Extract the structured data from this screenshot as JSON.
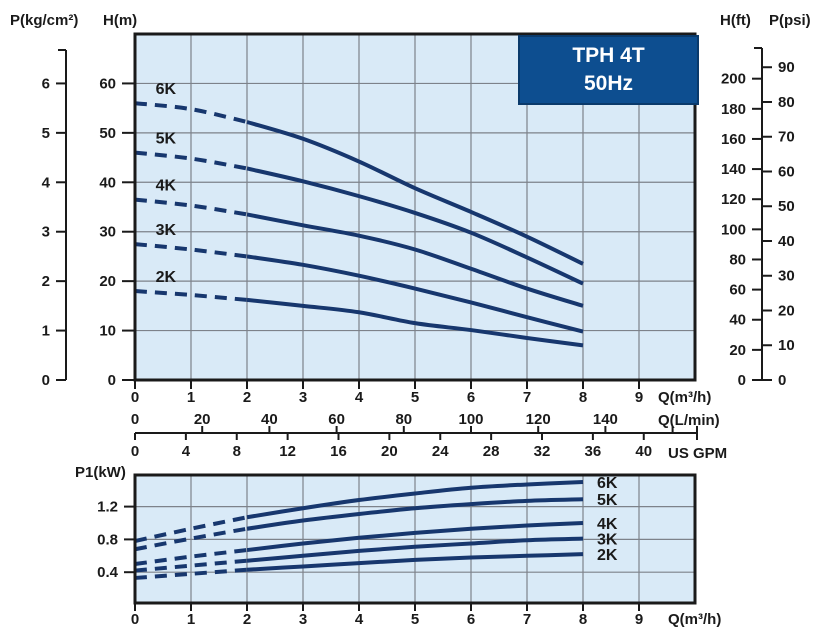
{
  "title_box": {
    "model": "TPH 4T",
    "frequency": "50Hz"
  },
  "header": {
    "left_pressure_axis_label": "P(kg/cm²)",
    "left_head_axis_label": "H(m)",
    "right_head_axis_label": "H(ft)",
    "right_pressure_axis_label": "P(psi)"
  },
  "left_axes": {
    "p_kgcm2_ticks": [
      0,
      1,
      2,
      3,
      4,
      5,
      6
    ],
    "h_m_ticks": [
      0,
      10,
      20,
      30,
      40,
      50,
      60
    ]
  },
  "right_axes": {
    "h_ft_ticks": [
      0,
      20,
      40,
      60,
      80,
      100,
      120,
      140,
      160,
      180,
      200
    ],
    "p_psi_ticks": [
      0,
      10,
      20,
      30,
      40,
      50,
      60,
      70,
      80,
      90
    ]
  },
  "x_axis_rows": {
    "m3h": {
      "unit": "Q(m³/h)",
      "ticks": [
        0,
        1,
        2,
        3,
        4,
        5,
        6,
        7,
        8,
        9
      ]
    },
    "lmin": {
      "unit": "Q(L/min)",
      "ticks": [
        0,
        20,
        40,
        60,
        80,
        100,
        120,
        140
      ]
    },
    "usgpm": {
      "unit": "US GPM",
      "ticks": [
        0,
        4,
        8,
        12,
        16,
        20,
        24,
        28,
        32,
        36,
        40
      ]
    }
  },
  "power_axis": {
    "label": "P1(kW)",
    "ticks": [
      0.4,
      0.8,
      1.2
    ]
  },
  "bottom_x_axis": {
    "unit": "Q(m³/h)",
    "ticks": [
      0,
      1,
      2,
      3,
      4,
      5,
      6,
      7,
      8,
      9
    ]
  },
  "colors": {
    "plot_background": "#d9eaf7",
    "curve": "#17376e",
    "grid": "#7d828a",
    "frame": "#1a1a1a",
    "title_box_fill": "#0d4e90",
    "title_box_border": "#0a3a6b",
    "title_box_text": "#ffffff",
    "text": "#1a1a1a"
  },
  "chart_data": [
    {
      "id": "head-curves",
      "type": "line",
      "title": "TPH 4T 50Hz",
      "xlabel": "Q(m³/h)",
      "ylabel": "H(m)",
      "x": [
        0,
        1,
        2,
        3,
        4,
        5,
        6,
        7,
        8
      ],
      "series": [
        {
          "name": "6K",
          "values": [
            56,
            54.8,
            52.2,
            48.8,
            44.2,
            38.8,
            34,
            29,
            23.5
          ]
        },
        {
          "name": "5K",
          "values": [
            46,
            44.8,
            42.8,
            40.2,
            37.2,
            33.8,
            29.8,
            24.8,
            19.5
          ]
        },
        {
          "name": "4K",
          "values": [
            36.5,
            35.3,
            33.5,
            31.3,
            29.2,
            26.4,
            22.5,
            18.5,
            15
          ]
        },
        {
          "name": "3K",
          "values": [
            27.5,
            26.4,
            25,
            23.3,
            21.1,
            18.5,
            15.7,
            12.7,
            9.8
          ]
        },
        {
          "name": "2K",
          "values": [
            18,
            17.2,
            16.2,
            15,
            13.7,
            11.5,
            10.1,
            8.5,
            7
          ]
        }
      ],
      "dashed_until_x": 2,
      "xlim": [
        0,
        10
      ],
      "ylim": [
        0,
        70
      ],
      "x_gridlines": [
        1,
        2,
        3,
        4,
        5,
        6,
        7,
        8,
        9
      ],
      "y_gridlines": [
        10,
        20,
        30,
        40,
        50,
        60
      ],
      "legend_position": "labels-near-curves",
      "grid": true
    },
    {
      "id": "power-curves",
      "type": "line",
      "xlabel": "Q(m³/h)",
      "ylabel": "P1(kW)",
      "x": [
        0,
        1,
        2,
        3,
        4,
        5,
        6,
        7,
        8
      ],
      "series": [
        {
          "name": "6K",
          "values": [
            0.78,
            0.93,
            1.07,
            1.18,
            1.28,
            1.36,
            1.43,
            1.47,
            1.5
          ]
        },
        {
          "name": "5K",
          "values": [
            0.68,
            0.81,
            0.93,
            1.03,
            1.11,
            1.18,
            1.23,
            1.27,
            1.29
          ]
        },
        {
          "name": "4K",
          "values": [
            0.5,
            0.59,
            0.67,
            0.75,
            0.82,
            0.88,
            0.93,
            0.97,
            1.0
          ]
        },
        {
          "name": "3K",
          "values": [
            0.42,
            0.48,
            0.54,
            0.6,
            0.66,
            0.71,
            0.75,
            0.79,
            0.81
          ]
        },
        {
          "name": "2K",
          "values": [
            0.33,
            0.38,
            0.43,
            0.47,
            0.51,
            0.55,
            0.58,
            0.6,
            0.62
          ]
        }
      ],
      "dashed_until_x": 2,
      "xlim": [
        0,
        10
      ],
      "ylim": [
        0,
        1.59
      ],
      "x_gridlines": [
        1,
        2,
        3,
        4,
        5,
        6,
        7,
        8,
        9
      ],
      "y_gridlines": [
        0.4,
        0.8,
        1.2
      ],
      "legend_position": "labels-right-of-curves",
      "grid": true
    }
  ]
}
